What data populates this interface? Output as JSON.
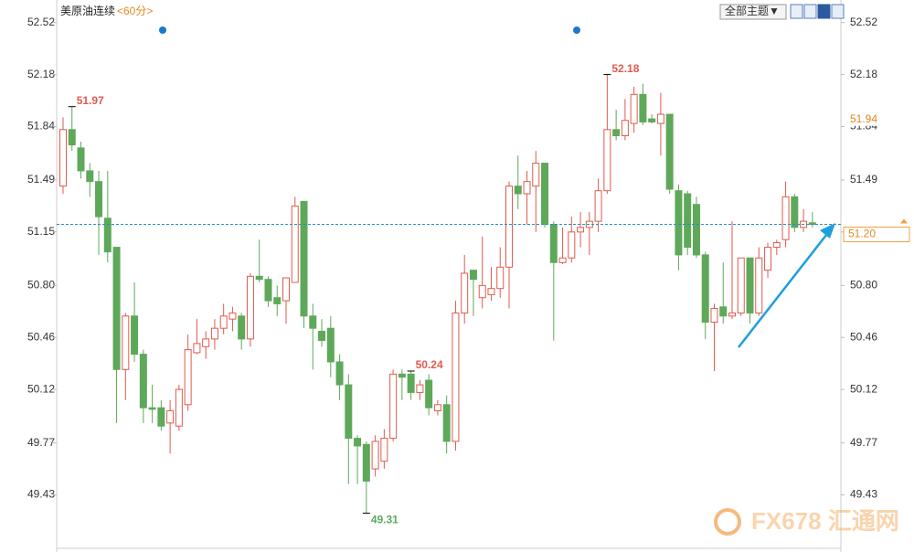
{
  "chart_data": {
    "type": "candlestick",
    "title": "美原油连续",
    "subtitle": "<60分>",
    "menu": "全部主题▼",
    "ylim": [
      49.08,
      52.62
    ],
    "yticks": [
      52.52,
      52.18,
      51.84,
      51.49,
      51.15,
      {
        "value": 50.8,
        "label": "50.80"
      },
      50.46,
      50.12,
      49.77,
      49.43
    ],
    "last_price": {
      "value": 51.2,
      "label": "51.20"
    },
    "price_mark": 51.94,
    "high_low_labels": [
      51.97,
      52.18,
      49.31,
      50.24
    ],
    "up_color": "#e05a4e",
    "down_color": "#5ea85a",
    "watermark": "FX678 汇通网",
    "open": [
      51.45,
      51.82,
      51.7,
      51.55,
      51.48,
      51.24,
      51.05,
      50.25,
      50.6,
      50.35,
      50.0,
      50.0,
      49.9,
      49.88,
      50.02,
      50.36,
      50.4,
      50.45,
      50.52,
      50.58,
      50.6,
      50.45,
      50.86,
      50.84,
      50.72,
      50.7,
      50.82,
      51.35,
      50.6,
      50.5,
      50.52,
      50.3,
      50.15,
      49.8,
      49.76,
      49.6,
      49.65,
      49.8,
      50.22,
      50.22,
      50.1,
      50.18,
      49.98,
      50.02,
      49.78,
      50.62,
      50.9,
      50.72,
      50.74,
      50.78,
      50.92,
      51.45,
      51.4,
      51.45,
      51.6,
      51.2,
      50.95,
      50.98,
      51.15,
      51.18,
      51.22,
      51.42,
      51.82,
      51.78,
      51.86,
      52.05,
      51.89,
      51.86,
      51.92,
      51.42,
      51.4,
      51.33,
      51.0,
      50.56,
      50.66,
      50.6,
      50.62,
      50.98,
      50.62,
      50.9,
      51.05,
      51.1,
      51.38,
      51.18,
      51.21
    ],
    "high": [
      51.9,
      51.97,
      51.74,
      51.6,
      51.55,
      51.55,
      51.05,
      50.62,
      50.82,
      50.38,
      50.15,
      50.05,
      50.05,
      50.15,
      50.48,
      50.58,
      50.5,
      50.58,
      50.68,
      50.66,
      50.62,
      50.88,
      51.1,
      50.86,
      50.8,
      50.85,
      51.38,
      51.35,
      50.68,
      50.58,
      50.6,
      50.35,
      50.22,
      49.82,
      49.78,
      49.82,
      49.86,
      50.25,
      50.25,
      50.24,
      50.18,
      50.22,
      50.05,
      50.08,
      50.7,
      51.0,
      50.9,
      51.12,
      50.92,
      51.05,
      51.48,
      51.65,
      51.55,
      51.68,
      51.6,
      51.22,
      51.18,
      51.25,
      51.28,
      51.28,
      51.5,
      52.18,
      51.95,
      52.02,
      52.1,
      52.12,
      51.92,
      52.06,
      51.92,
      51.46,
      51.42,
      51.38,
      51.02,
      50.68,
      50.95,
      51.22,
      50.98,
      50.98,
      51.05,
      51.08,
      51.1,
      51.48,
      51.4,
      51.3,
      51.28
    ],
    "low": [
      51.4,
      51.68,
      51.5,
      51.38,
      51.0,
      50.95,
      49.9,
      50.05,
      50.3,
      49.9,
      49.9,
      49.85,
      49.7,
      49.85,
      49.98,
      50.35,
      50.32,
      50.38,
      50.48,
      50.5,
      50.38,
      50.4,
      50.82,
      50.66,
      50.6,
      50.55,
      50.82,
      50.52,
      50.25,
      50.4,
      50.2,
      50.05,
      49.5,
      49.5,
      49.31,
      49.55,
      49.6,
      49.78,
      50.05,
      50.05,
      50.05,
      49.95,
      49.95,
      49.7,
      49.72,
      50.55,
      50.6,
      50.65,
      50.7,
      50.72,
      50.65,
      51.3,
      51.2,
      51.15,
      51.18,
      50.44,
      50.94,
      50.95,
      51.05,
      51.0,
      51.15,
      51.4,
      51.75,
      51.75,
      51.8,
      51.85,
      51.86,
      51.65,
      51.4,
      50.9,
      51.0,
      50.98,
      50.45,
      50.24,
      50.55,
      50.58,
      50.6,
      50.55,
      50.6,
      50.85,
      51.0,
      51.05,
      51.15,
      51.15,
      51.18
    ],
    "close": [
      51.82,
      51.72,
      51.55,
      51.48,
      51.25,
      51.02,
      50.25,
      50.6,
      50.35,
      50.0,
      49.99,
      49.88,
      49.98,
      50.12,
      50.38,
      50.42,
      50.45,
      50.52,
      50.6,
      50.62,
      50.45,
      50.86,
      50.84,
      50.7,
      50.68,
      50.85,
      51.32,
      50.6,
      50.52,
      50.44,
      50.3,
      50.15,
      49.8,
      49.75,
      49.52,
      49.78,
      49.8,
      50.22,
      50.2,
      50.1,
      50.15,
      50.0,
      50.02,
      49.78,
      50.62,
      50.88,
      50.84,
      50.8,
      50.78,
      50.92,
      51.45,
      51.4,
      51.48,
      51.6,
      51.2,
      50.95,
      50.98,
      51.15,
      51.18,
      51.22,
      51.42,
      51.82,
      51.78,
      51.88,
      52.05,
      51.87,
      51.87,
      51.92,
      51.43,
      51.0,
      51.05,
      51.0,
      50.56,
      50.65,
      50.6,
      50.62,
      50.98,
      50.62,
      50.98,
      51.05,
      51.08,
      51.38,
      51.18,
      51.22,
      51.2
    ]
  }
}
